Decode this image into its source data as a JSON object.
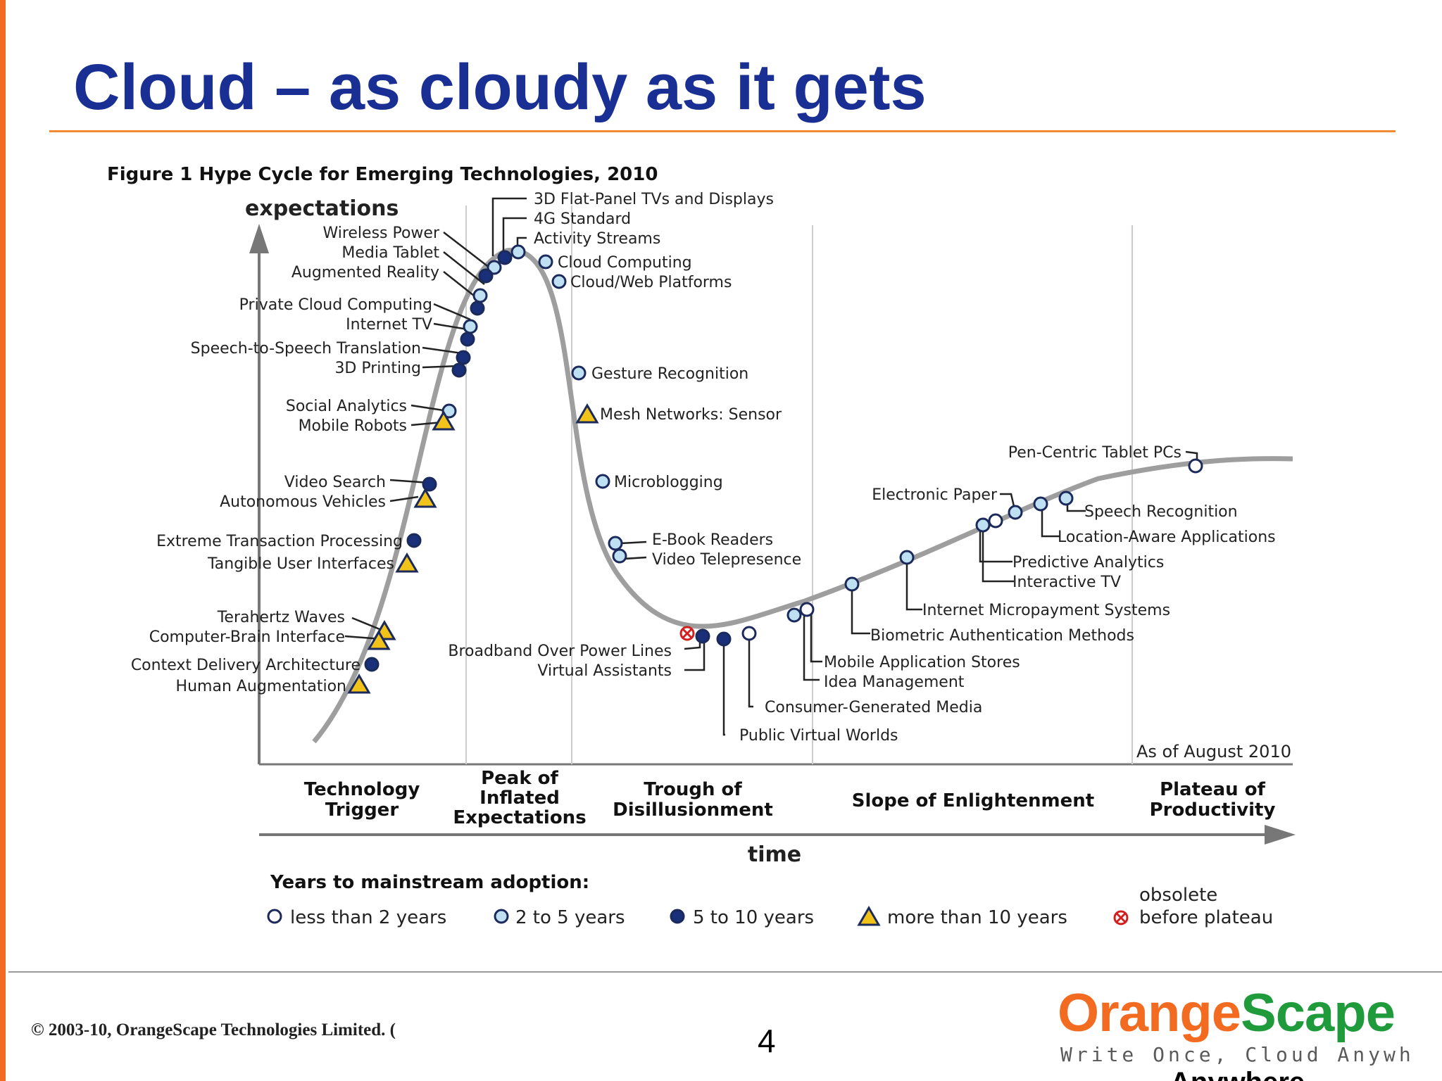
{
  "slide": {
    "title": "Cloud – as cloudy as it gets",
    "copyright": "© 2003-10, OrangeScape Technologies Limited. (",
    "page_number": "4",
    "logo": {
      "orange": "Orange",
      "scape": "Scape",
      "tagline": "Write Once, Cloud Anywhere",
      "cut_text": "Anywhere."
    },
    "colors": {
      "title": "#1a2f93",
      "accent": "#f26b21",
      "logo_green": "#1f9b3c"
    }
  },
  "figure": {
    "caption": "Figure 1 Hype Cycle for Emerging Technologies, 2010",
    "y_label": "expectations",
    "x_label": "time",
    "date_note": "As of August 2010",
    "phases": [
      [
        "Technology",
        "Trigger"
      ],
      [
        "Peak of",
        "Inflated",
        "Expectations"
      ],
      [
        "Trough of",
        "Disillusionment"
      ],
      [
        "Slope of Enlightenment"
      ],
      [
        "Plateau of",
        "Productivity"
      ]
    ],
    "legend": {
      "title": "Years to mainstream adoption:",
      "lt2": "less than 2 years",
      "y2to5": "2 to 5 years",
      "y5to10": "5 to 10 years",
      "gt10": "more than 10 years",
      "obsolete1": "obsolete",
      "obsolete2": "before plateau"
    },
    "technologies": [
      {
        "name": "3D Flat-Panel TVs and Displays",
        "category": "2 to 5 years"
      },
      {
        "name": "4G Standard",
        "category": "5 to 10 years"
      },
      {
        "name": "Activity Streams",
        "category": "2 to 5 years"
      },
      {
        "name": "Cloud Computing",
        "category": "2 to 5 years"
      },
      {
        "name": "Cloud/Web Platforms",
        "category": "2 to 5 years"
      },
      {
        "name": "Wireless Power",
        "category": "2 to 5 years"
      },
      {
        "name": "Media Tablet",
        "category": "2 to 5 years"
      },
      {
        "name": "Augmented Reality",
        "category": "5 to 10 years"
      },
      {
        "name": "Private Cloud Computing",
        "category": "5 to 10 years"
      },
      {
        "name": "Internet TV",
        "category": "2 to 5 years"
      },
      {
        "name": "Speech-to-Speech Translation",
        "category": "5 to 10 years"
      },
      {
        "name": "3D Printing",
        "category": "5 to 10 years"
      },
      {
        "name": "Social Analytics",
        "category": "2 to 5 years"
      },
      {
        "name": "Mobile Robots",
        "category": "more than 10 years"
      },
      {
        "name": "Video Search",
        "category": "5 to 10 years"
      },
      {
        "name": "Autonomous Vehicles",
        "category": "more than 10 years"
      },
      {
        "name": "Extreme Transaction Processing",
        "category": "5 to 10 years"
      },
      {
        "name": "Tangible User Interfaces",
        "category": "more than 10 years"
      },
      {
        "name": "Terahertz Waves",
        "category": "more than 10 years"
      },
      {
        "name": "Computer-Brain Interface",
        "category": "more than 10 years"
      },
      {
        "name": "Context Delivery Architecture",
        "category": "5 to 10 years"
      },
      {
        "name": "Human Augmentation",
        "category": "more than 10 years"
      },
      {
        "name": "Gesture Recognition",
        "category": "2 to 5 years"
      },
      {
        "name": "Mesh Networks: Sensor",
        "category": "more than 10 years"
      },
      {
        "name": "Microblogging",
        "category": "2 to 5 years"
      },
      {
        "name": "E-Book Readers",
        "category": "2 to 5 years"
      },
      {
        "name": "Video Telepresence",
        "category": "2 to 5 years"
      },
      {
        "name": "Broadband Over Power Lines",
        "category": "obsolete before plateau"
      },
      {
        "name": "Virtual Assistants",
        "category": "5 to 10 years"
      },
      {
        "name": "Public Virtual Worlds",
        "category": "5 to 10 years"
      },
      {
        "name": "Consumer-Generated Media",
        "category": "less than 2 years"
      },
      {
        "name": "Mobile Application Stores",
        "category": "less than 2 years"
      },
      {
        "name": "Idea Management",
        "category": "2 to 5 years"
      },
      {
        "name": "Biometric Authentication Methods",
        "category": "2 to 5 years"
      },
      {
        "name": "Internet Micropayment Systems",
        "category": "2 to 5 years"
      },
      {
        "name": "Predictive Analytics",
        "category": "2 to 5 years"
      },
      {
        "name": "Interactive TV",
        "category": "less than 2 years"
      },
      {
        "name": "Electronic Paper",
        "category": "2 to 5 years"
      },
      {
        "name": "Speech Recognition",
        "category": "2 to 5 years"
      },
      {
        "name": "Location-Aware Applications",
        "category": "2 to 5 years"
      },
      {
        "name": "Pen-Centric Tablet PCs",
        "category": "less than 2 years"
      }
    ]
  }
}
